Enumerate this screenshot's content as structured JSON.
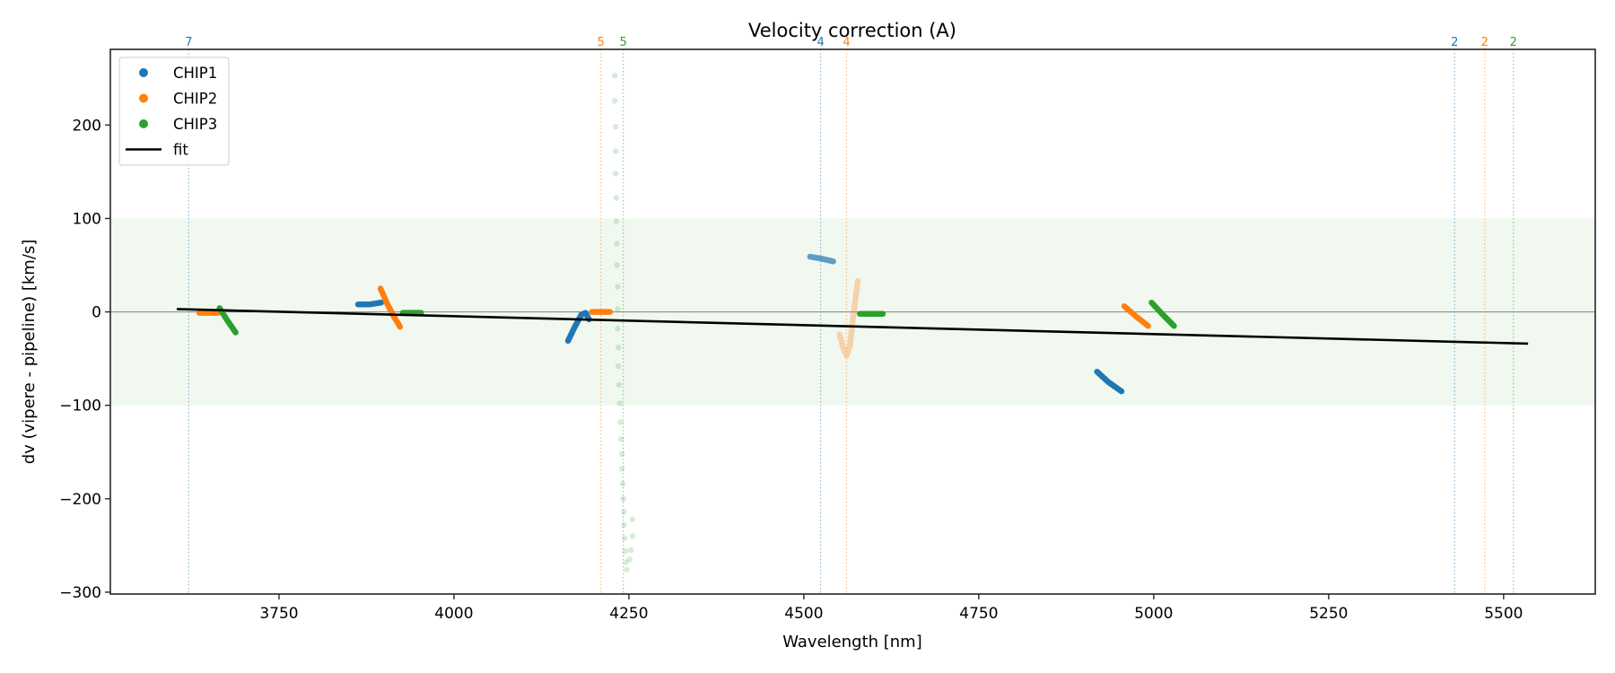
{
  "chart_data": {
    "type": "scatter",
    "title": "Velocity correction (A)",
    "xlabel": "Wavelength [nm]",
    "ylabel": "dv (vipere - pipeline) [km/s]",
    "xlim": [
      3509,
      5631
    ],
    "ylim": [
      -302,
      281
    ],
    "xticks": [
      3750,
      4000,
      4250,
      4500,
      4750,
      5000,
      5250,
      5500
    ],
    "yticks": [
      -300,
      -200,
      -100,
      0,
      100,
      200
    ],
    "xtick_labels": [
      "3750",
      "4000",
      "4250",
      "4500",
      "4750",
      "5000",
      "5250",
      "5500"
    ],
    "ytick_labels": [
      "−300",
      "−200",
      "−100",
      "0",
      "100",
      "200"
    ],
    "grid": false,
    "band": {
      "y0": -100,
      "y1": 100,
      "color": "#2ca02c"
    },
    "zero_line": 0,
    "legend": {
      "placement": "top-left",
      "entries": [
        {
          "label": "CHIP1",
          "color": "#1f77b4",
          "marker": "dot"
        },
        {
          "label": "CHIP2",
          "color": "#ff7f0e",
          "marker": "dot"
        },
        {
          "label": "CHIP3",
          "color": "#2ca02c",
          "marker": "dot"
        },
        {
          "label": "fit",
          "color": "#000000",
          "marker": "line"
        }
      ]
    },
    "series": [
      {
        "name": "CHIP1",
        "color": "#1f77b4",
        "segments": [
          {
            "alpha": 1,
            "points": [
              [
                3863,
                8
              ],
              [
                3880,
                8
              ],
              [
                3896,
                10
              ]
            ]
          },
          {
            "alpha": 1,
            "points": [
              [
                4163,
                -31
              ],
              [
                4172,
                -17
              ],
              [
                4182,
                -3
              ],
              [
                4188,
                -1
              ],
              [
                4193,
                -8
              ]
            ]
          },
          {
            "alpha": 0.7,
            "points": [
              [
                4509,
                59
              ],
              [
                4525,
                57
              ],
              [
                4542,
                54
              ]
            ]
          },
          {
            "alpha": 1,
            "points": [
              [
                4919,
                -64
              ],
              [
                4935,
                -75
              ],
              [
                4954,
                -85
              ]
            ]
          }
        ]
      },
      {
        "name": "CHIP2",
        "color": "#ff7f0e",
        "segments": [
          {
            "alpha": 1,
            "points": [
              [
                3636,
                -1
              ],
              [
                3650,
                -1
              ],
              [
                3663,
                -1
              ]
            ]
          },
          {
            "alpha": 1,
            "points": [
              [
                3895,
                25
              ],
              [
                3905,
                8
              ],
              [
                3915,
                -6
              ],
              [
                3923,
                -16
              ]
            ]
          },
          {
            "alpha": 1,
            "points": [
              [
                4197,
                0
              ],
              [
                4210,
                0
              ],
              [
                4223,
                0
              ]
            ]
          },
          {
            "alpha": 0.3,
            "points": [
              [
                4551,
                -24
              ],
              [
                4556,
                -38
              ],
              [
                4561,
                -47
              ],
              [
                4566,
                -36
              ],
              [
                4570,
                -8
              ],
              [
                4574,
                14
              ],
              [
                4577,
                33
              ]
            ]
          },
          {
            "alpha": 1,
            "points": [
              [
                4958,
                6
              ],
              [
                4975,
                -5
              ],
              [
                4992,
                -15
              ]
            ]
          }
        ]
      },
      {
        "name": "CHIP3",
        "color": "#2ca02c",
        "segments": [
          {
            "alpha": 1,
            "points": [
              [
                3665,
                4
              ],
              [
                3676,
                -9
              ],
              [
                3688,
                -22
              ]
            ]
          },
          {
            "alpha": 1,
            "points": [
              [
                3927,
                -1
              ],
              [
                3940,
                -1
              ],
              [
                3953,
                -1
              ]
            ]
          },
          {
            "alpha": 0.15,
            "points": [
              [
                4230,
                253
              ],
              [
                4230,
                226
              ],
              [
                4231,
                198
              ],
              [
                4231,
                172
              ],
              [
                4231,
                148
              ],
              [
                4232,
                122
              ],
              [
                4232,
                97
              ],
              [
                4233,
                73
              ],
              [
                4233,
                50
              ],
              [
                4234,
                27
              ],
              [
                4234,
                3
              ],
              [
                4234,
                -18
              ],
              [
                4235,
                -38
              ],
              [
                4235,
                -58
              ],
              [
                4236,
                -78
              ],
              [
                4237,
                -98
              ],
              [
                4238,
                -118
              ],
              [
                4239,
                -136
              ],
              [
                4240,
                -152
              ],
              [
                4240,
                -168
              ],
              [
                4241,
                -184
              ],
              [
                4242,
                -200
              ],
              [
                4243,
                -214
              ],
              [
                4243,
                -228
              ],
              [
                4244,
                -242
              ],
              [
                4245,
                -256
              ],
              [
                4246,
                -268
              ],
              [
                4247,
                -276
              ],
              [
                4255,
                -222
              ],
              [
                4255,
                -240
              ],
              [
                4253,
                -255
              ],
              [
                4251,
                -265
              ]
            ]
          },
          {
            "alpha": 1,
            "points": [
              [
                4580,
                -2
              ],
              [
                4596,
                -2
              ],
              [
                4613,
                -2
              ]
            ]
          },
          {
            "alpha": 1,
            "points": [
              [
                4997,
                10
              ],
              [
                5013,
                -3
              ],
              [
                5029,
                -15
              ]
            ]
          }
        ]
      }
    ],
    "fit": {
      "label": "fit",
      "color": "#000000",
      "points": [
        [
          3604,
          3
        ],
        [
          5535,
          -34
        ]
      ]
    },
    "vlines": [
      {
        "x": 3621,
        "label": "7",
        "color": "#1f77b4"
      },
      {
        "x": 4210,
        "label": "5",
        "color": "#ff7f0e"
      },
      {
        "x": 4242,
        "label": "5",
        "color": "#2ca02c"
      },
      {
        "x": 4524,
        "label": "4",
        "color": "#1f77b4"
      },
      {
        "x": 4561,
        "label": "4",
        "color": "#ff7f0e"
      },
      {
        "x": 5430,
        "label": "2",
        "color": "#1f77b4"
      },
      {
        "x": 5473,
        "label": "2",
        "color": "#ff7f0e"
      },
      {
        "x": 5514,
        "label": "2",
        "color": "#2ca02c"
      }
    ]
  }
}
